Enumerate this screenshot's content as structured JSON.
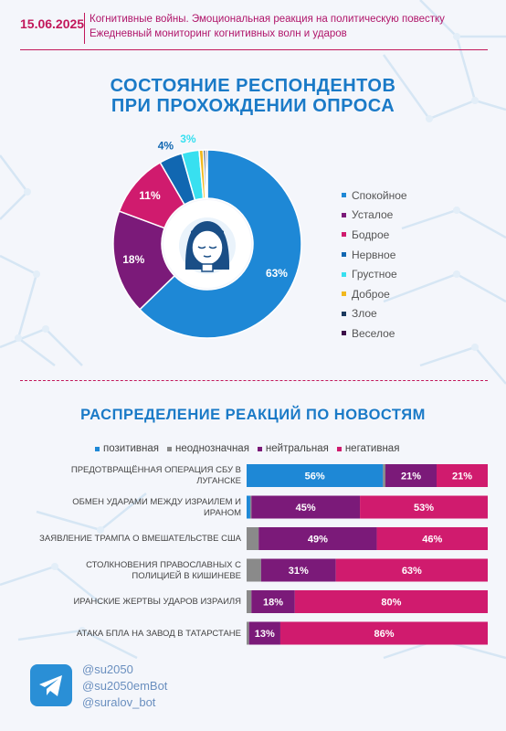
{
  "header": {
    "date": "15.06.2025",
    "line1": "Когнитивные войны. Эмоциональная реакция на политическую повестку",
    "line2": "Ежедневный мониторинг когнитивных волн и ударов"
  },
  "colors": {
    "blue": "#1e88d6",
    "purple": "#7b1a79",
    "magenta": "#d01b6e",
    "darkblue": "#1167b1",
    "cyan": "#38e0f0",
    "yellow": "#f1b81d",
    "navy": "#1b3a5e",
    "deeppurple": "#3c0f49",
    "gray": "#8a8a8a"
  },
  "chart_data": [
    {
      "type": "pie",
      "title_line1": "СОСТОЯНИЕ РЕСПОНДЕНТОВ",
      "title_line2": "ПРИ ПРОХОЖДЕНИИ ОПРОСА",
      "legend_position": "right",
      "slices": [
        {
          "label": "Спокойное",
          "value": 63,
          "display": "63%",
          "color": "#1e88d6"
        },
        {
          "label": "Усталое",
          "value": 18,
          "display": "18%",
          "color": "#7b1a79"
        },
        {
          "label": "Бодрое",
          "value": 11,
          "display": "11%",
          "color": "#d01b6e"
        },
        {
          "label": "Нервное",
          "value": 4,
          "display": "4%",
          "color": "#1167b1"
        },
        {
          "label": "Грустное",
          "value": 3,
          "display": "3%",
          "color": "#38e0f0"
        },
        {
          "label": "Доброе",
          "value": 0.7,
          "display": "",
          "color": "#f1b81d"
        },
        {
          "label": "Злое",
          "value": 0.4,
          "display": "",
          "color": "#1b3a5e"
        },
        {
          "label": "Веселое",
          "value": 0.3,
          "display": "",
          "color": "#3c0f49"
        }
      ]
    },
    {
      "type": "bar",
      "stacked": true,
      "orientation": "horizontal",
      "title": "РАСПРЕДЕЛЕНИЕ РЕАКЦИЙ ПО НОВОСТЯМ",
      "legend_position": "top",
      "series": [
        {
          "name": "позитивная",
          "color": "#1e88d6"
        },
        {
          "name": "неоднозначная",
          "color": "#8a8a8a"
        },
        {
          "name": "нейтральная",
          "color": "#7b1a79"
        },
        {
          "name": "негативная",
          "color": "#d01b6e"
        }
      ],
      "rows": [
        {
          "label_line1": "ПРЕДОТВРАЩЁННАЯ ОПЕРАЦИЯ СБУ В",
          "label_line2": "ЛУГАНСКЕ",
          "values": [
            56,
            1,
            21,
            21
          ],
          "labels": [
            "56%",
            "",
            "21%",
            "21%"
          ]
        },
        {
          "label_line1": "ОБМЕН УДАРАМИ МЕЖДУ ИЗРАИЛЕМ И",
          "label_line2": "ИРАНОМ",
          "values": [
            1.5,
            0.5,
            45,
            53
          ],
          "labels": [
            "",
            "",
            "45%",
            "53%"
          ]
        },
        {
          "label_line1": "ЗАЯВЛЕНИЕ ТРАМПА О ВМЕШАТЕЛЬСТВЕ США",
          "label_line2": "",
          "values": [
            0,
            5,
            49,
            46
          ],
          "labels": [
            "",
            "",
            "49%",
            "46%"
          ]
        },
        {
          "label_line1": "СТОЛКНОВЕНИЯ ПРАВОСЛАВНЫХ С",
          "label_line2": "ПОЛИЦИЕЙ В КИШИНЕВЕ",
          "values": [
            0,
            6,
            31,
            63
          ],
          "labels": [
            "",
            "",
            "31%",
            "63%"
          ]
        },
        {
          "label_line1": "ИРАНСКИЕ ЖЕРТВЫ УДАРОВ ИЗРАИЛЯ",
          "label_line2": "",
          "values": [
            0,
            2,
            18,
            80
          ],
          "labels": [
            "",
            "",
            "18%",
            "80%"
          ]
        },
        {
          "label_line1": "АТАКА БПЛА НА ЗАВОД В ТАТАРСТАНЕ",
          "label_line2": "",
          "values": [
            0,
            1,
            13,
            86
          ],
          "labels": [
            "",
            "",
            "13%",
            "86%"
          ]
        }
      ]
    }
  ],
  "footer": {
    "handles": [
      "@su2050",
      "@su2050emBot",
      "@suralov_bot"
    ]
  }
}
